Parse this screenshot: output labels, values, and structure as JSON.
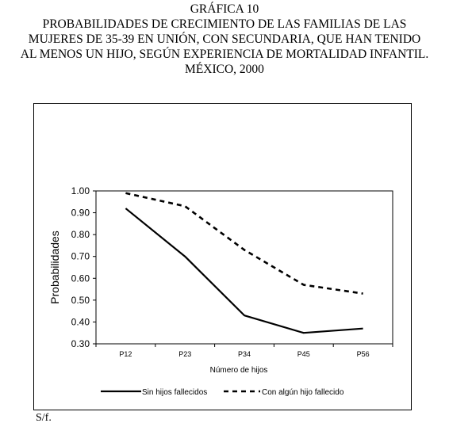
{
  "header": {
    "lines": [
      "GRÁFICA 10",
      "PROBABILIDADES DE CRECIMIENTO DE LAS FAMILIAS DE LAS",
      "MUJERES DE 35-39 EN UNIÓN, CON SECUNDARIA, QUE HAN TENIDO",
      "AL MENOS UN HIJO, SEGÚN EXPERIENCIA DE MORTALIDAD INFANTIL.",
      "MÉXICO, 2000"
    ]
  },
  "source": "S/f.",
  "chart_data": {
    "type": "line",
    "categories": [
      "P12",
      "P23",
      "P34",
      "P45",
      "P56"
    ],
    "series": [
      {
        "name": "Sin hijos fallecidos",
        "values": [
          0.92,
          0.7,
          0.43,
          0.35,
          0.37
        ],
        "style": "solid",
        "color": "#000000"
      },
      {
        "name": "Con algún hijo fallecido",
        "values": [
          0.99,
          0.93,
          0.73,
          0.57,
          0.53
        ],
        "style": "dashed",
        "color": "#000000"
      }
    ],
    "xlabel": "Número de hijos",
    "ylabel": "Probabilidades",
    "ylim": [
      0.3,
      1.0
    ],
    "yticks": [
      "0.30",
      "0.40",
      "0.50",
      "0.60",
      "0.70",
      "0.80",
      "0.90",
      "1.00"
    ],
    "grid": false,
    "legend_position": "bottom"
  }
}
